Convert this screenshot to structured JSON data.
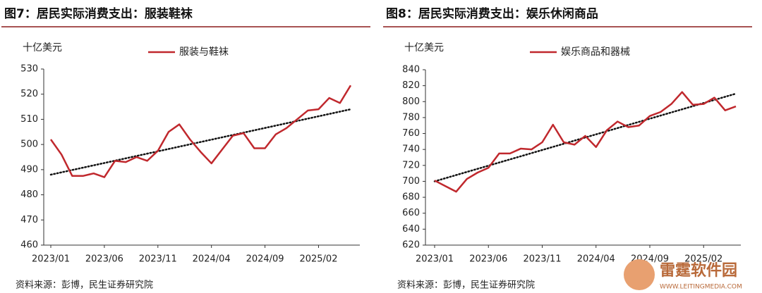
{
  "chart_data": [
    {
      "type": "line",
      "title": "图7：居民实际消费支出：服装鞋袜",
      "unit": "十亿美元",
      "categories": [
        "2023/01",
        null,
        null,
        null,
        null,
        "2023/06",
        null,
        null,
        null,
        null,
        "2023/11",
        null,
        null,
        null,
        null,
        "2024/04",
        null,
        null,
        null,
        null,
        "2024/09",
        null,
        null,
        null,
        null,
        "2025/02",
        null,
        null,
        null
      ],
      "series": [
        {
          "name": "服装与鞋袜",
          "color": "#c0282d",
          "values": [
            502,
            496,
            487.5,
            487.5,
            488.5,
            487,
            493.5,
            493,
            495,
            493.5,
            497.5,
            505,
            508,
            502,
            497,
            492.5,
            498,
            503.5,
            504.5,
            498.5,
            498.5,
            504,
            506.5,
            510,
            513.5,
            514,
            518.5,
            516.5,
            523.5
          ]
        }
      ],
      "trend": [
        488,
        514
      ],
      "ylim": [
        460,
        530
      ],
      "yticks": [
        460,
        470,
        480,
        490,
        500,
        510,
        520,
        530
      ],
      "source": "资料来源：彭博，民生证券研究院"
    },
    {
      "type": "line",
      "title": "图8：居民实际消费支出：娱乐休闲商品",
      "unit": "十亿美元",
      "categories": [
        "2023/01",
        null,
        null,
        null,
        null,
        "2023/06",
        null,
        null,
        null,
        null,
        "2023/11",
        null,
        null,
        null,
        null,
        "2024/04",
        null,
        null,
        null,
        null,
        "2024/09",
        null,
        null,
        null,
        null,
        "2025/02",
        null,
        null,
        null
      ],
      "series": [
        {
          "name": "娱乐商品和器械",
          "color": "#c0282d",
          "values": [
            701,
            694,
            687,
            703,
            711,
            717,
            735,
            735,
            741,
            740,
            749,
            771,
            749,
            746,
            757,
            743,
            764,
            775,
            768,
            770,
            782,
            787,
            797,
            812,
            796,
            797,
            805,
            789,
            794
          ]
        }
      ],
      "trend": [
        700,
        810
      ],
      "ylim": [
        620,
        840
      ],
      "yticks": [
        620,
        640,
        660,
        680,
        700,
        720,
        740,
        760,
        780,
        800,
        820,
        840
      ],
      "source": "资料来源：彭博，民生证券研究院"
    }
  ],
  "watermark": {
    "name": "雷霆软件园",
    "url": "WWW.LEITINGMEDIA.COM"
  }
}
